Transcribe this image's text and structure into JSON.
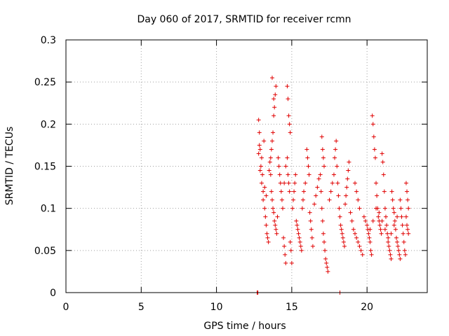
{
  "chart_data": {
    "type": "scatter",
    "title": "Day 060 of 2017, SRMTID for receiver rcmn",
    "xlabel": "GPS time / hours",
    "ylabel": "SRMTID / TECUs",
    "xlim": [
      0,
      24
    ],
    "ylim": [
      0,
      0.3
    ],
    "xticks": [
      0,
      5,
      10,
      15,
      20
    ],
    "xtick_labels": [
      "0",
      "5",
      "10",
      "15",
      "20"
    ],
    "yticks": [
      0,
      0.05,
      0.1,
      0.15,
      0.2,
      0.25,
      0.3
    ],
    "ytick_labels": [
      "0",
      "0.05",
      "0.1",
      "0.15",
      "0.2",
      "0.25",
      "0.3"
    ],
    "grid": true,
    "marker": "+",
    "series": [
      {
        "name": "SRMTID",
        "color": "#e00000",
        "points": [
          [
            12.7,
            0.0
          ],
          [
            12.75,
            0.0
          ],
          [
            18.2,
            0.0
          ],
          [
            12.8,
            0.205
          ],
          [
            12.85,
            0.19
          ],
          [
            12.9,
            0.17
          ],
          [
            12.95,
            0.15
          ],
          [
            13.0,
            0.16
          ],
          [
            13.05,
            0.14
          ],
          [
            13.1,
            0.12
          ],
          [
            13.15,
            0.18
          ],
          [
            12.8,
            0.165
          ],
          [
            12.9,
            0.145
          ],
          [
            13.0,
            0.13
          ],
          [
            13.1,
            0.11
          ],
          [
            12.85,
            0.175
          ],
          [
            13.2,
            0.1
          ],
          [
            13.25,
            0.09
          ],
          [
            13.3,
            0.08
          ],
          [
            13.35,
            0.07
          ],
          [
            13.4,
            0.065
          ],
          [
            13.45,
            0.06
          ],
          [
            13.2,
            0.125
          ],
          [
            13.3,
            0.115
          ],
          [
            13.5,
            0.145
          ],
          [
            13.55,
            0.155
          ],
          [
            13.6,
            0.16
          ],
          [
            13.65,
            0.17
          ],
          [
            13.7,
            0.18
          ],
          [
            13.75,
            0.19
          ],
          [
            13.8,
            0.21
          ],
          [
            13.85,
            0.22
          ],
          [
            13.9,
            0.235
          ],
          [
            13.95,
            0.245
          ],
          [
            13.7,
            0.255
          ],
          [
            13.8,
            0.23
          ],
          [
            13.6,
            0.14
          ],
          [
            13.65,
            0.12
          ],
          [
            13.7,
            0.11
          ],
          [
            13.75,
            0.1
          ],
          [
            13.8,
            0.095
          ],
          [
            13.85,
            0.085
          ],
          [
            13.9,
            0.08
          ],
          [
            13.95,
            0.075
          ],
          [
            14.0,
            0.07
          ],
          [
            14.05,
            0.09
          ],
          [
            14.1,
            0.16
          ],
          [
            14.15,
            0.15
          ],
          [
            14.2,
            0.14
          ],
          [
            14.25,
            0.13
          ],
          [
            14.3,
            0.12
          ],
          [
            14.35,
            0.11
          ],
          [
            14.4,
            0.1
          ],
          [
            14.45,
            0.065
          ],
          [
            14.5,
            0.055
          ],
          [
            14.55,
            0.045
          ],
          [
            14.6,
            0.035
          ],
          [
            14.7,
            0.245
          ],
          [
            14.75,
            0.23
          ],
          [
            14.8,
            0.21
          ],
          [
            14.85,
            0.2
          ],
          [
            14.9,
            0.19
          ],
          [
            14.7,
            0.16
          ],
          [
            14.75,
            0.14
          ],
          [
            14.8,
            0.13
          ],
          [
            14.85,
            0.12
          ],
          [
            14.9,
            0.06
          ],
          [
            14.95,
            0.05
          ],
          [
            15.0,
            0.035
          ],
          [
            14.6,
            0.15
          ],
          [
            14.5,
            0.13
          ],
          [
            15.05,
            0.1
          ],
          [
            15.1,
            0.11
          ],
          [
            15.15,
            0.12
          ],
          [
            15.2,
            0.13
          ],
          [
            15.25,
            0.14
          ],
          [
            15.3,
            0.085
          ],
          [
            15.35,
            0.08
          ],
          [
            15.4,
            0.075
          ],
          [
            15.45,
            0.07
          ],
          [
            15.5,
            0.065
          ],
          [
            15.55,
            0.06
          ],
          [
            15.6,
            0.055
          ],
          [
            15.65,
            0.05
          ],
          [
            15.7,
            0.1
          ],
          [
            15.75,
            0.11
          ],
          [
            15.8,
            0.12
          ],
          [
            15.9,
            0.13
          ],
          [
            16.0,
            0.17
          ],
          [
            16.05,
            0.16
          ],
          [
            16.1,
            0.15
          ],
          [
            16.15,
            0.14
          ],
          [
            16.2,
            0.095
          ],
          [
            16.25,
            0.085
          ],
          [
            16.3,
            0.075
          ],
          [
            16.35,
            0.065
          ],
          [
            16.4,
            0.055
          ],
          [
            16.5,
            0.105
          ],
          [
            16.6,
            0.115
          ],
          [
            16.7,
            0.125
          ],
          [
            16.8,
            0.135
          ],
          [
            16.9,
            0.14
          ],
          [
            16.95,
            0.12
          ],
          [
            17.0,
            0.1
          ],
          [
            17.05,
            0.085
          ],
          [
            17.1,
            0.07
          ],
          [
            17.15,
            0.06
          ],
          [
            17.2,
            0.05
          ],
          [
            17.25,
            0.04
          ],
          [
            17.3,
            0.035
          ],
          [
            17.35,
            0.03
          ],
          [
            17.4,
            0.025
          ],
          [
            17.0,
            0.185
          ],
          [
            17.05,
            0.17
          ],
          [
            17.1,
            0.16
          ],
          [
            17.15,
            0.15
          ],
          [
            17.5,
            0.11
          ],
          [
            17.6,
            0.12
          ],
          [
            17.7,
            0.13
          ],
          [
            17.8,
            0.14
          ],
          [
            17.85,
            0.16
          ],
          [
            17.9,
            0.17
          ],
          [
            17.95,
            0.18
          ],
          [
            18.0,
            0.15
          ],
          [
            18.05,
            0.13
          ],
          [
            18.1,
            0.115
          ],
          [
            18.15,
            0.1
          ],
          [
            18.2,
            0.09
          ],
          [
            18.25,
            0.08
          ],
          [
            18.3,
            0.075
          ],
          [
            18.35,
            0.07
          ],
          [
            18.4,
            0.065
          ],
          [
            18.45,
            0.06
          ],
          [
            18.5,
            0.055
          ],
          [
            18.55,
            0.105
          ],
          [
            18.6,
            0.115
          ],
          [
            18.65,
            0.125
          ],
          [
            18.7,
            0.135
          ],
          [
            18.75,
            0.145
          ],
          [
            18.8,
            0.155
          ],
          [
            18.9,
            0.095
          ],
          [
            19.0,
            0.085
          ],
          [
            19.1,
            0.075
          ],
          [
            19.2,
            0.07
          ],
          [
            19.3,
            0.065
          ],
          [
            19.4,
            0.06
          ],
          [
            19.5,
            0.055
          ],
          [
            19.6,
            0.05
          ],
          [
            19.7,
            0.045
          ],
          [
            19.2,
            0.13
          ],
          [
            19.3,
            0.12
          ],
          [
            19.4,
            0.11
          ],
          [
            19.5,
            0.1
          ],
          [
            19.8,
            0.09
          ],
          [
            19.9,
            0.085
          ],
          [
            20.0,
            0.08
          ],
          [
            20.05,
            0.075
          ],
          [
            20.1,
            0.07
          ],
          [
            20.15,
            0.065
          ],
          [
            20.2,
            0.06
          ],
          [
            20.25,
            0.05
          ],
          [
            20.3,
            0.045
          ],
          [
            20.35,
            0.21
          ],
          [
            20.4,
            0.2
          ],
          [
            20.45,
            0.185
          ],
          [
            20.5,
            0.17
          ],
          [
            20.55,
            0.16
          ],
          [
            20.6,
            0.13
          ],
          [
            20.65,
            0.115
          ],
          [
            20.7,
            0.1
          ],
          [
            20.75,
            0.09
          ],
          [
            20.8,
            0.085
          ],
          [
            20.85,
            0.08
          ],
          [
            20.9,
            0.075
          ],
          [
            20.95,
            0.07
          ],
          [
            21.0,
            0.165
          ],
          [
            21.05,
            0.155
          ],
          [
            21.1,
            0.14
          ],
          [
            21.15,
            0.12
          ],
          [
            21.2,
            0.1
          ],
          [
            21.25,
            0.09
          ],
          [
            21.3,
            0.08
          ],
          [
            21.35,
            0.07
          ],
          [
            21.4,
            0.06
          ],
          [
            21.45,
            0.055
          ],
          [
            21.5,
            0.05
          ],
          [
            21.55,
            0.045
          ],
          [
            21.6,
            0.04
          ],
          [
            21.65,
            0.12
          ],
          [
            21.7,
            0.11
          ],
          [
            21.75,
            0.1
          ],
          [
            21.8,
            0.095
          ],
          [
            21.85,
            0.085
          ],
          [
            21.9,
            0.075
          ],
          [
            21.95,
            0.065
          ],
          [
            22.0,
            0.06
          ],
          [
            22.05,
            0.055
          ],
          [
            22.1,
            0.05
          ],
          [
            22.15,
            0.045
          ],
          [
            22.2,
            0.04
          ],
          [
            22.25,
            0.1
          ],
          [
            22.3,
            0.09
          ],
          [
            22.35,
            0.08
          ],
          [
            22.4,
            0.07
          ],
          [
            22.45,
            0.06
          ],
          [
            22.5,
            0.05
          ],
          [
            22.55,
            0.045
          ],
          [
            22.6,
            0.13
          ],
          [
            22.65,
            0.12
          ],
          [
            22.7,
            0.11
          ],
          [
            22.75,
            0.1
          ],
          [
            22.6,
            0.09
          ],
          [
            22.65,
            0.08
          ],
          [
            22.7,
            0.075
          ],
          [
            22.75,
            0.07
          ],
          [
            22.2,
            0.11
          ],
          [
            22.0,
            0.09
          ],
          [
            21.8,
            0.08
          ],
          [
            21.6,
            0.07
          ],
          [
            21.4,
            0.065
          ],
          [
            21.2,
            0.075
          ],
          [
            21.0,
            0.085
          ],
          [
            20.8,
            0.095
          ],
          [
            20.6,
            0.1
          ],
          [
            20.4,
            0.085
          ],
          [
            20.2,
            0.075
          ]
        ]
      }
    ]
  }
}
